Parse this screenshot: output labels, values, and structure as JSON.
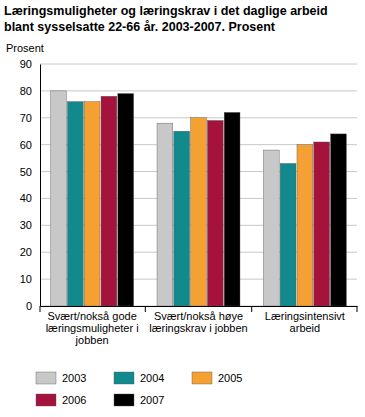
{
  "chart_data": {
    "type": "bar",
    "title": "Læringsmuligheter og læringskrav i det daglige arbeid blant sysselsatte 22-66 år. 2003-2007. Prosent",
    "y_label": "Prosent",
    "categories": [
      "Svært/nokså gode læringsmuligheter i jobben",
      "Svært/nokså høye læringskrav i jobben",
      "Læringsintensivt arbeid"
    ],
    "series": [
      {
        "name": "2003",
        "color": "#c8c8c8",
        "values": [
          80,
          68,
          58
        ]
      },
      {
        "name": "2004",
        "color": "#12898c",
        "values": [
          76,
          65,
          53
        ]
      },
      {
        "name": "2005",
        "color": "#f5a033",
        "values": [
          76,
          70,
          60
        ]
      },
      {
        "name": "2006",
        "color": "#a5123c",
        "values": [
          78,
          69,
          61
        ]
      },
      {
        "name": "2007",
        "color": "#000000",
        "values": [
          79,
          72,
          64
        ]
      }
    ],
    "ylim": [
      0,
      90
    ],
    "yticks": [
      0,
      10,
      20,
      30,
      40,
      50,
      60,
      70,
      80,
      90
    ],
    "grid": true,
    "legend": "bottom"
  }
}
